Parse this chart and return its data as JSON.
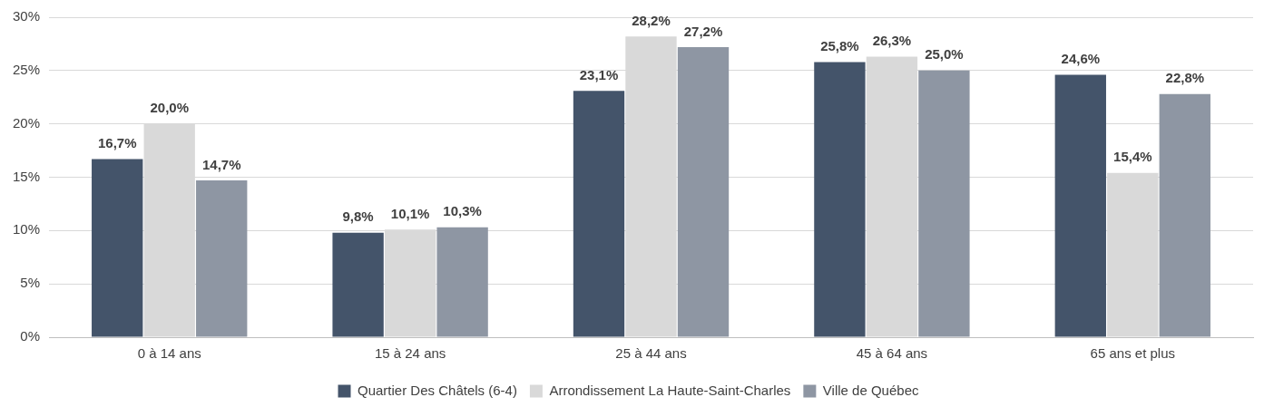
{
  "chart_data": {
    "type": "bar",
    "categories": [
      "0 à 14 ans",
      "15 à 24 ans",
      "25 à 44 ans",
      "45 à 64 ans",
      "65 ans et plus"
    ],
    "series": [
      {
        "name": "Quartier Des Châtels (6-4)",
        "color": "#44546a",
        "values": [
          16.7,
          9.8,
          23.1,
          25.8,
          24.6
        ],
        "value_labels": [
          "16,7%",
          "9,8%",
          "23,1%",
          "25,8%",
          "24,6%"
        ]
      },
      {
        "name": "Arrondissement La Haute-Saint-Charles",
        "color": "#d9d9d9",
        "values": [
          20.0,
          10.1,
          28.2,
          26.3,
          15.4
        ],
        "value_labels": [
          "20,0%",
          "10,1%",
          "28,2%",
          "26,3%",
          "15,4%"
        ]
      },
      {
        "name": "Ville de Québec",
        "color": "#8e96a3",
        "values": [
          14.7,
          10.3,
          27.2,
          25.0,
          22.8
        ],
        "value_labels": [
          "14,7%",
          "10,3%",
          "27,2%",
          "25,0%",
          "22,8%"
        ]
      }
    ],
    "ylim": [
      0,
      30
    ],
    "yticks": [
      {
        "value": 0,
        "label": "0%"
      },
      {
        "value": 5,
        "label": "5%"
      },
      {
        "value": 10,
        "label": "10%"
      },
      {
        "value": 15,
        "label": "15%"
      },
      {
        "value": 20,
        "label": "20%"
      },
      {
        "value": 25,
        "label": "25%"
      },
      {
        "value": 30,
        "label": "30%"
      }
    ],
    "grid": "y",
    "legend": "bottom"
  }
}
